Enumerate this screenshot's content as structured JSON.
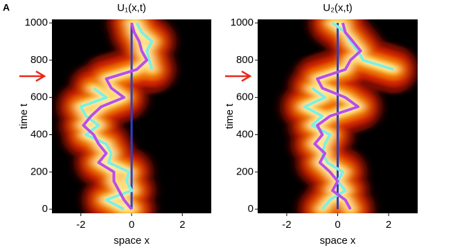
{
  "panel_label": "A",
  "chart_data": [
    {
      "type": "line",
      "title": "U₁(x,t)",
      "xlabel": "space x",
      "ylabel": "time t",
      "xlim": [
        -3.14,
        3.14
      ],
      "ylim": [
        -22,
        1019
      ],
      "xticks": [
        -2,
        0,
        2
      ],
      "yticks": [
        0,
        200,
        400,
        600,
        800,
        1000
      ],
      "y": [
        0,
        50,
        100,
        150,
        200,
        250,
        300,
        350,
        400,
        450,
        500,
        550,
        600,
        650,
        700,
        750,
        800,
        850,
        900,
        950,
        1000
      ],
      "series": [
        {
          "color": "#2a3fd0",
          "values": [
            0,
            0,
            0,
            0,
            0,
            0,
            0,
            0,
            0,
            0,
            0,
            0,
            0,
            0,
            0,
            0,
            0,
            0,
            0,
            0,
            0
          ]
        },
        {
          "color": "#7ff0e0",
          "values": [
            -0.3,
            -1.0,
            0,
            -0.2,
            -0.1,
            -0.9,
            -0.8,
            -1.0,
            -1.8,
            -1.3,
            -1.8,
            -2.0,
            -1.0,
            -1.5,
            null,
            0.8,
            0.7,
            0.6,
            0.8,
            0.4,
            0.2
          ]
        },
        {
          "color": "#b84fe8",
          "values": [
            0,
            -0.3,
            -0.5,
            -0.7,
            -0.7,
            -1.3,
            -1.0,
            -1.3,
            -1.5,
            -1.9,
            -1.6,
            -1.2,
            -0.3,
            -0.8,
            -1.0,
            0.2,
            0.6,
            0.4,
            0.3,
            0.1,
            0
          ]
        }
      ]
    },
    {
      "type": "line",
      "title": "U₂(x,t)",
      "xlabel": "space x",
      "ylabel": "time t",
      "xlim": [
        -3.14,
        3.14
      ],
      "ylim": [
        -22,
        1019
      ],
      "xticks": [
        -2,
        0,
        2
      ],
      "yticks": [
        0,
        200,
        400,
        600,
        800,
        1000
      ],
      "y": [
        0,
        50,
        100,
        150,
        200,
        250,
        300,
        350,
        400,
        450,
        500,
        550,
        600,
        650,
        700,
        750,
        800,
        850,
        900,
        950,
        1000
      ],
      "series": [
        {
          "color": "#2a3fd0",
          "values": [
            0,
            0,
            0,
            0,
            0,
            0,
            0,
            0,
            0,
            0,
            0,
            0,
            0,
            0,
            0,
            0,
            0,
            0,
            0,
            0,
            0
          ]
        },
        {
          "color": "#7ff0e0",
          "values": [
            -0.6,
            -0.3,
            0.3,
            0,
            0.2,
            -0.4,
            -0.6,
            -0.5,
            -0.3,
            -1.0,
            -0.6,
            -1.3,
            -0.5,
            -1.0,
            null,
            2.2,
            1.0,
            0.8,
            0.5,
            0.3,
            -0.2
          ]
        },
        {
          "color": "#b84fe8",
          "values": [
            0.5,
            0.3,
            -0.2,
            0,
            -0.3,
            -0.7,
            -0.5,
            -0.9,
            -0.6,
            -0.8,
            -0.3,
            0.8,
            0.3,
            -0.6,
            -0.8,
            0.3,
            0.5,
            0.9,
            0.6,
            0.3,
            0.2
          ]
        }
      ]
    }
  ]
}
